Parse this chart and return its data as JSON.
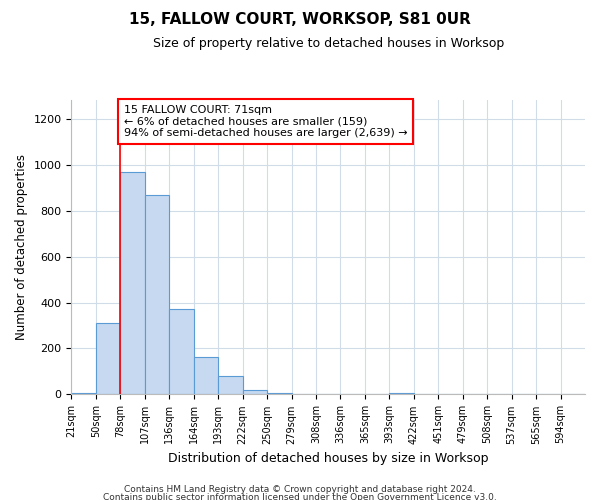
{
  "title": "15, FALLOW COURT, WORKSOP, S81 0UR",
  "subtitle": "Size of property relative to detached houses in Worksop",
  "xlabel": "Distribution of detached houses by size in Worksop",
  "ylabel": "Number of detached properties",
  "bar_color": "#c6d9f0",
  "bar_edge_color": "#5b9bd5",
  "bin_labels": [
    "21sqm",
    "50sqm",
    "78sqm",
    "107sqm",
    "136sqm",
    "164sqm",
    "193sqm",
    "222sqm",
    "250sqm",
    "279sqm",
    "308sqm",
    "336sqm",
    "365sqm",
    "393sqm",
    "422sqm",
    "451sqm",
    "479sqm",
    "508sqm",
    "537sqm",
    "565sqm",
    "594sqm"
  ],
  "bar_heights": [
    5,
    310,
    970,
    870,
    370,
    165,
    80,
    20,
    5,
    0,
    0,
    0,
    0,
    5,
    0,
    0,
    0,
    0,
    0,
    0,
    0
  ],
  "annotation_box_text": "15 FALLOW COURT: 71sqm\n← 6% of detached houses are smaller (159)\n94% of semi-detached houses are larger (2,639) →",
  "red_line_bin_index": 2,
  "ylim": [
    0,
    1280
  ],
  "yticks": [
    0,
    200,
    400,
    600,
    800,
    1000,
    1200
  ],
  "footer_line1": "Contains HM Land Registry data © Crown copyright and database right 2024.",
  "footer_line2": "Contains public sector information licensed under the Open Government Licence v3.0.",
  "background_color": "#ffffff",
  "grid_color": "#d0dce8"
}
